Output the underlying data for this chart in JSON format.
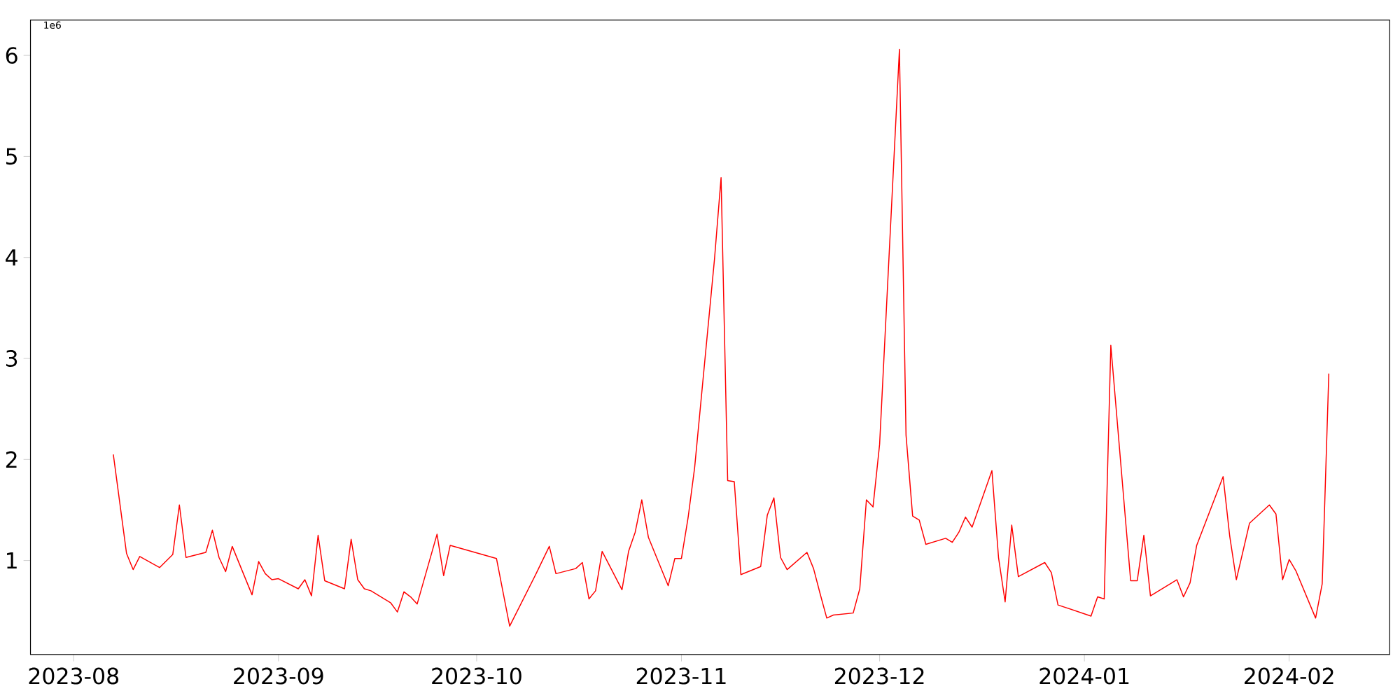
{
  "chart_data": {
    "type": "line",
    "color": "#ff0000",
    "x": [
      "2023-08-07",
      "2023-08-09",
      "2023-08-10",
      "2023-08-11",
      "2023-08-14",
      "2023-08-16",
      "2023-08-17",
      "2023-08-18",
      "2023-08-21",
      "2023-08-22",
      "2023-08-23",
      "2023-08-24",
      "2023-08-25",
      "2023-08-28",
      "2023-08-29",
      "2023-08-30",
      "2023-08-31",
      "2023-09-01",
      "2023-09-04",
      "2023-09-05",
      "2023-09-06",
      "2023-09-07",
      "2023-09-08",
      "2023-09-11",
      "2023-09-12",
      "2023-09-13",
      "2023-09-14",
      "2023-09-15",
      "2023-09-18",
      "2023-09-19",
      "2023-09-20",
      "2023-09-21",
      "2023-09-22",
      "2023-09-25",
      "2023-09-26",
      "2023-09-27",
      "2023-10-04",
      "2023-10-06",
      "2023-10-10",
      "2023-10-12",
      "2023-10-13",
      "2023-10-16",
      "2023-10-17",
      "2023-10-18",
      "2023-10-19",
      "2023-10-20",
      "2023-10-23",
      "2023-10-24",
      "2023-10-25",
      "2023-10-26",
      "2023-10-27",
      "2023-10-30",
      "2023-10-31",
      "2023-11-01",
      "2023-11-02",
      "2023-11-03",
      "2023-11-06",
      "2023-11-07",
      "2023-11-08",
      "2023-11-09",
      "2023-11-10",
      "2023-11-13",
      "2023-11-14",
      "2023-11-15",
      "2023-11-16",
      "2023-11-17",
      "2023-11-20",
      "2023-11-21",
      "2023-11-22",
      "2023-11-23",
      "2023-11-24",
      "2023-11-27",
      "2023-11-28",
      "2023-11-29",
      "2023-11-30",
      "2023-12-01",
      "2023-12-04",
      "2023-12-05",
      "2023-12-06",
      "2023-12-07",
      "2023-12-08",
      "2023-12-11",
      "2023-12-12",
      "2023-12-13",
      "2023-12-14",
      "2023-12-15",
      "2023-12-18",
      "2023-12-19",
      "2023-12-20",
      "2023-12-21",
      "2023-12-22",
      "2023-12-26",
      "2023-12-27",
      "2023-12-28",
      "2024-01-02",
      "2024-01-03",
      "2024-01-04",
      "2024-01-05",
      "2024-01-08",
      "2024-01-09",
      "2024-01-10",
      "2024-01-11",
      "2024-01-15",
      "2024-01-16",
      "2024-01-17",
      "2024-01-18",
      "2024-01-22",
      "2024-01-23",
      "2024-01-24",
      "2024-01-26",
      "2024-01-29",
      "2024-01-30",
      "2024-01-31",
      "2024-02-01",
      "2024-02-02",
      "2024-02-05",
      "2024-02-06",
      "2024-02-07"
    ],
    "values": [
      2.05,
      1.07,
      0.91,
      1.04,
      0.93,
      1.06,
      1.55,
      1.03,
      1.08,
      1.3,
      1.03,
      0.89,
      1.14,
      0.66,
      0.99,
      0.87,
      0.81,
      0.82,
      0.72,
      0.81,
      0.65,
      1.25,
      0.8,
      0.72,
      1.21,
      0.81,
      0.72,
      0.7,
      0.58,
      0.49,
      0.69,
      0.64,
      0.57,
      1.26,
      0.85,
      1.15,
      1.02,
      0.35,
      0.87,
      1.14,
      0.87,
      0.92,
      0.98,
      0.62,
      0.7,
      1.09,
      0.71,
      1.09,
      1.28,
      1.6,
      1.23,
      0.75,
      1.02,
      1.02,
      1.42,
      1.92,
      3.98,
      4.79,
      1.79,
      1.78,
      0.86,
      0.94,
      1.45,
      1.62,
      1.03,
      0.91,
      1.08,
      0.92,
      0.67,
      0.43,
      0.46,
      0.48,
      0.72,
      1.6,
      1.53,
      2.15,
      6.06,
      2.24,
      1.44,
      1.4,
      1.16,
      1.22,
      1.18,
      1.28,
      1.43,
      1.33,
      1.89,
      1.03,
      0.59,
      1.35,
      0.84,
      0.98,
      0.88,
      0.56,
      0.45,
      0.64,
      0.62,
      3.13,
      0.8,
      0.8,
      1.25,
      0.65,
      0.81,
      0.64,
      0.78,
      1.15,
      1.83,
      1.24,
      0.81,
      1.37,
      1.55,
      1.46,
      0.81,
      1.01,
      0.9,
      0.43,
      0.77,
      2.85
    ],
    "xlim": [
      "2023-07-25T11:00",
      "2024-02-16T05:00"
    ],
    "xticks": [
      {
        "value": "2023-08-01",
        "label": "2023-08"
      },
      {
        "value": "2023-09-01",
        "label": "2023-09"
      },
      {
        "value": "2023-10-01",
        "label": "2023-10"
      },
      {
        "value": "2023-11-01",
        "label": "2023-11"
      },
      {
        "value": "2023-12-01",
        "label": "2023-12"
      },
      {
        "value": "2024-01-01",
        "label": "2024-01"
      },
      {
        "value": "2024-02-01",
        "label": "2024-02"
      }
    ],
    "ylim": [
      0.07,
      6.35
    ],
    "yticks": [
      1,
      2,
      3,
      4,
      5,
      6
    ],
    "annotations": [
      "1e6"
    ]
  }
}
